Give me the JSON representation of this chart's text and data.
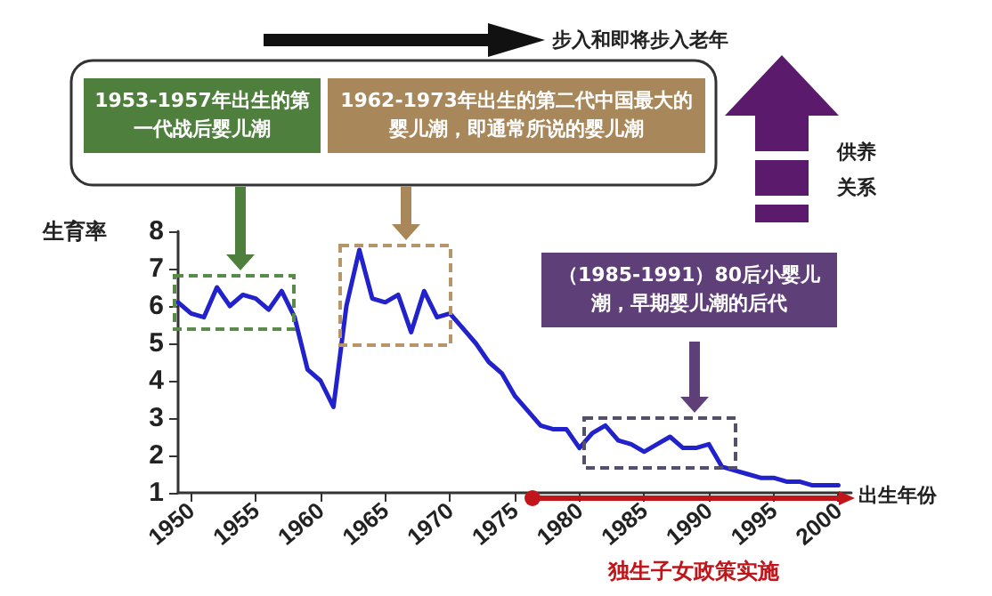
{
  "chart_data": {
    "type": "line",
    "xlabel": "出生年份",
    "ylabel": "生育率",
    "x": [
      1949,
      1950,
      1951,
      1952,
      1953,
      1954,
      1955,
      1956,
      1957,
      1958,
      1959,
      1960,
      1961,
      1962,
      1963,
      1964,
      1965,
      1966,
      1967,
      1968,
      1969,
      1970,
      1971,
      1972,
      1973,
      1974,
      1975,
      1976,
      1977,
      1978,
      1979,
      1980,
      1981,
      1982,
      1983,
      1984,
      1985,
      1986,
      1987,
      1988,
      1989,
      1990,
      1991,
      1992,
      1993,
      1994,
      1995,
      1996,
      1997,
      1998,
      1999,
      2000
    ],
    "series": [
      {
        "color": "#2222cc",
        "values": [
          6.1,
          5.8,
          5.7,
          6.5,
          6.0,
          6.3,
          6.2,
          5.9,
          6.4,
          5.7,
          4.3,
          4.0,
          3.3,
          6.0,
          7.5,
          6.2,
          6.1,
          6.3,
          5.3,
          6.4,
          5.7,
          5.8,
          5.4,
          5.0,
          4.5,
          4.2,
          3.6,
          3.2,
          2.8,
          2.7,
          2.7,
          2.2,
          2.6,
          2.8,
          2.4,
          2.3,
          2.1,
          2.3,
          2.5,
          2.2,
          2.2,
          2.3,
          1.7,
          1.6,
          1.5,
          1.4,
          1.4,
          1.3,
          1.3,
          1.2,
          1.2,
          1.2
        ]
      }
    ],
    "xlim": [
      1949,
      2001
    ],
    "xticks": [
      1950,
      1955,
      1960,
      1965,
      1970,
      1975,
      1980,
      1985,
      1990,
      1995,
      2000
    ],
    "ylim": [
      1,
      8
    ],
    "yticks": [
      1,
      2,
      3,
      4,
      5,
      6,
      7,
      8
    ],
    "grid": false,
    "marker": "none",
    "line_style": "solid",
    "annotations": [
      "步入和即将步入老年",
      "供养关系",
      "1953-1957年出生的第一代战后婴儿潮",
      "1962-1973年出生的第二代中国最大的婴儿潮，即通常所说的婴儿潮",
      "（1985-1991）80后小婴儿潮，早期婴儿潮的后代",
      "独生子女政策实施"
    ]
  }
}
